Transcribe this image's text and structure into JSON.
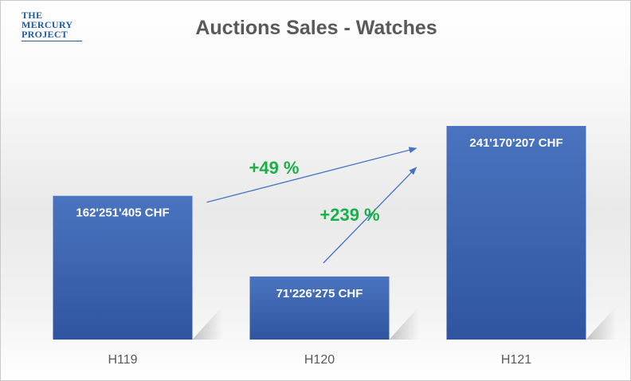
{
  "logo": {
    "lines": [
      "THE",
      "MERCURY",
      "PROJECT"
    ]
  },
  "chart_data": {
    "type": "bar",
    "title": "Auctions Sales - Watches",
    "categories": [
      "H119",
      "H120",
      "H121"
    ],
    "values": [
      162251405,
      71226275,
      241170207
    ],
    "data_labels": [
      "162'251'405 CHF",
      "71'226'275 CHF",
      "241'170'207 CHF"
    ],
    "ylim": [
      0,
      270000000
    ],
    "grid": false,
    "annotations": [
      {
        "text": "+49 %",
        "from": "H119",
        "to": "H121"
      },
      {
        "text": "+239 %",
        "from": "H120",
        "to": "H121"
      }
    ],
    "colors": {
      "bar": "#3f69b5",
      "bar_dark": "#2f55a0",
      "arrow": "#4472c4",
      "annotation": "#19b04a",
      "label": "#ffffff",
      "axis_text": "#595959"
    }
  }
}
